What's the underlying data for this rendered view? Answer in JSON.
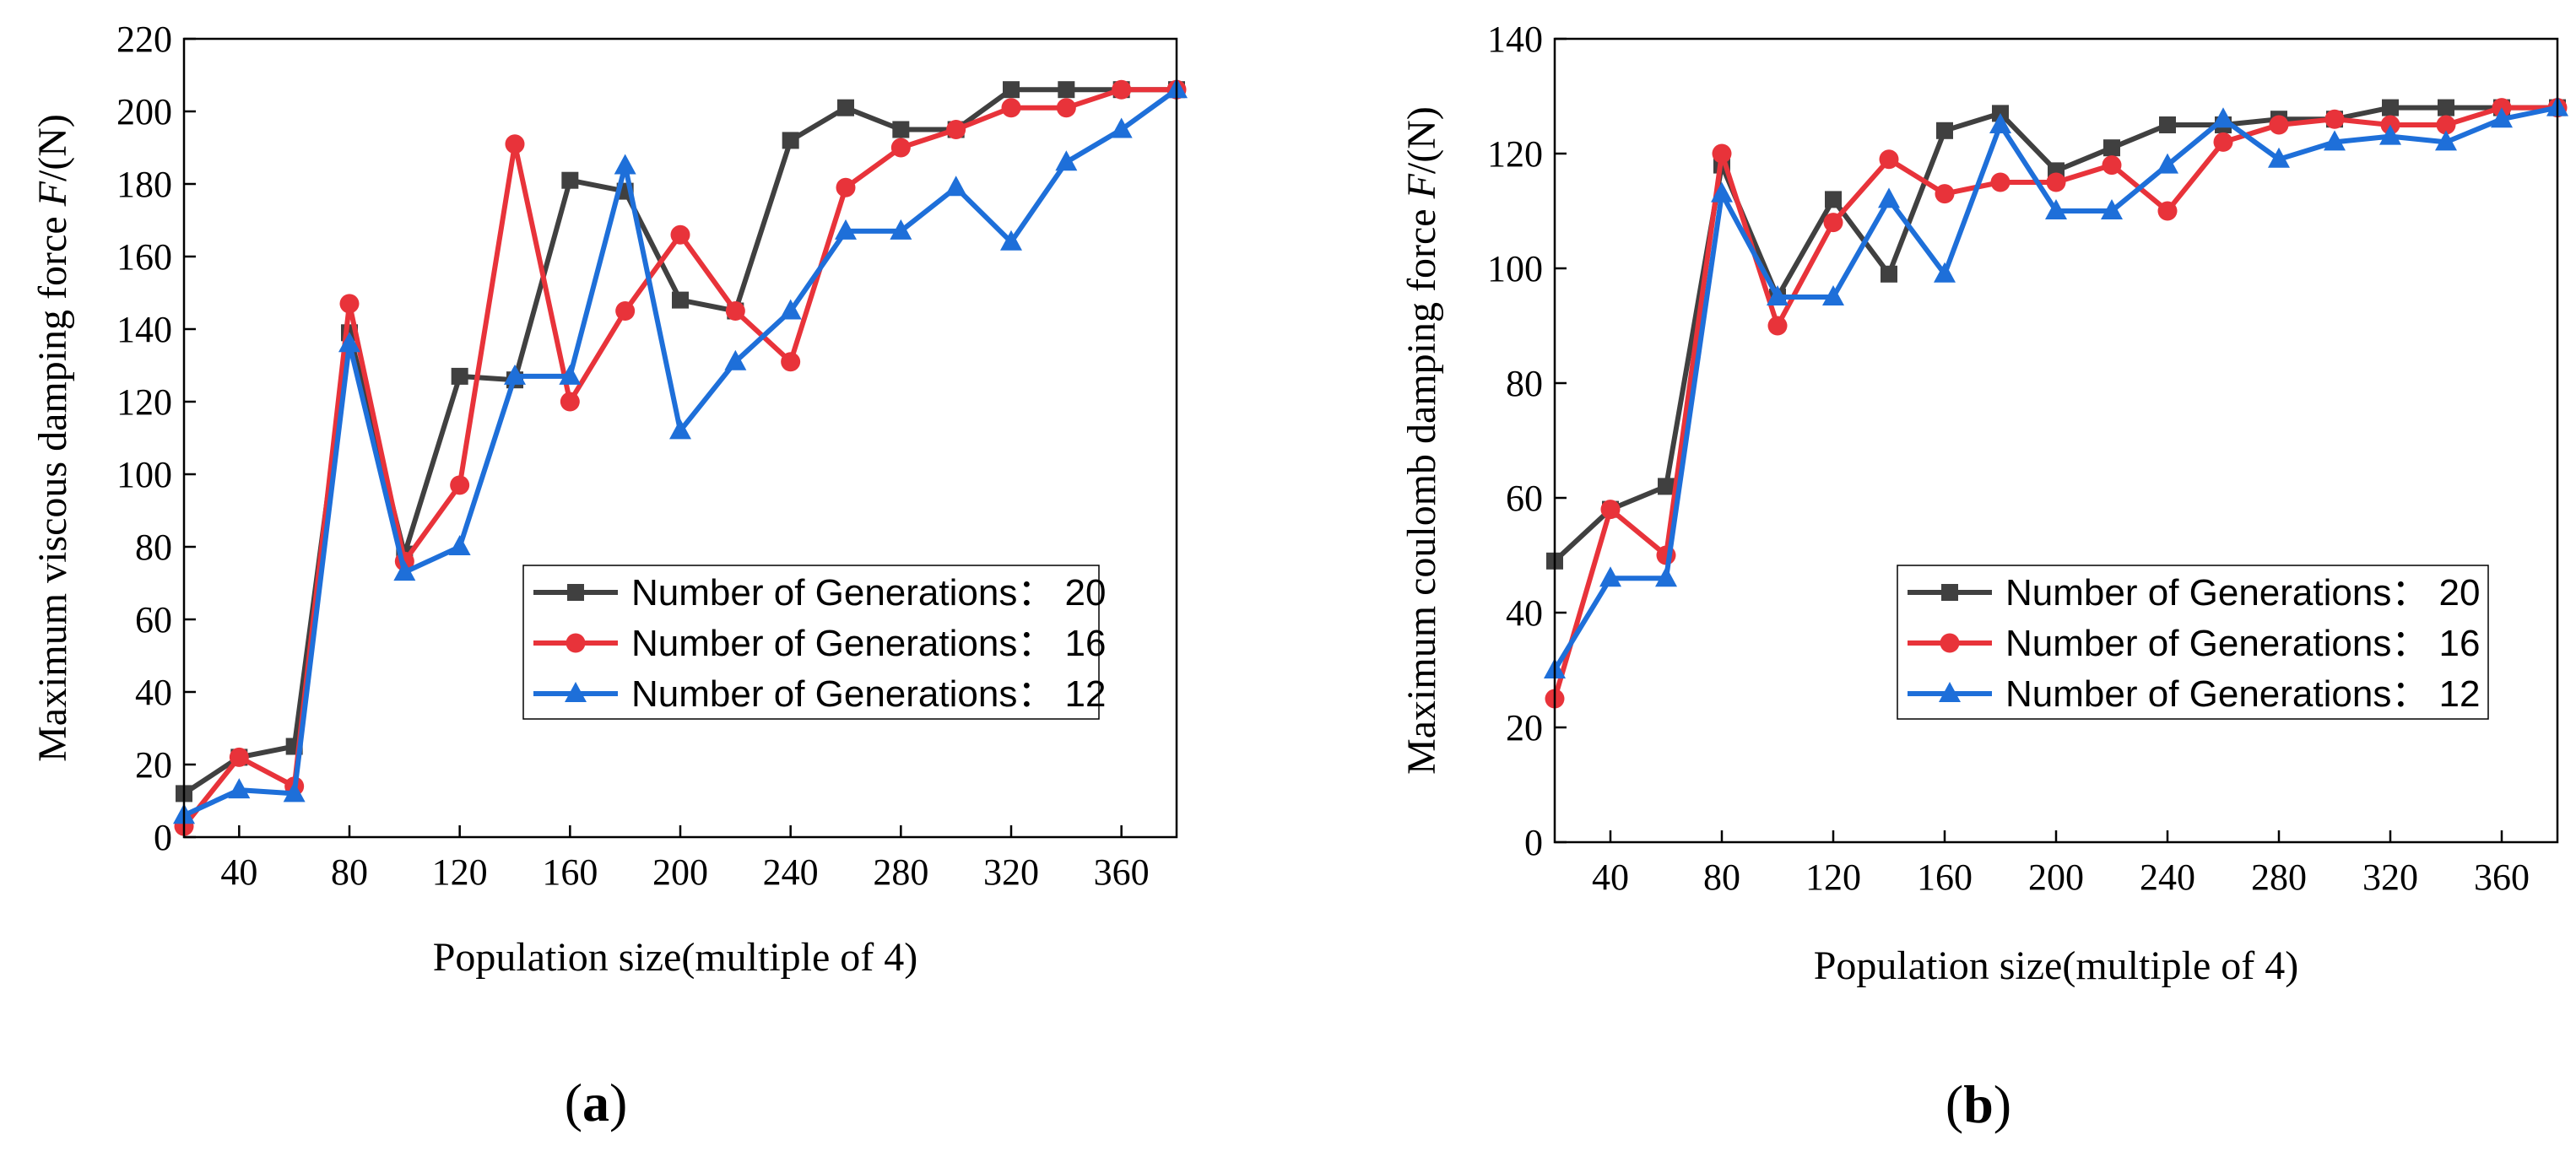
{
  "chart_data": [
    {
      "type": "line",
      "panel_label": [
        "(",
        "a",
        ")"
      ],
      "xlabel": "Population size(multiple of 4)",
      "ylabel_prefix": "Maximum viscous damping force ",
      "ylabel_symbol": "F",
      "ylabel_suffix": "/(N)",
      "xlim": [
        20,
        380
      ],
      "ylim": [
        0,
        220
      ],
      "xticks": [
        40,
        80,
        120,
        160,
        200,
        240,
        280,
        320,
        360
      ],
      "yticks": [
        0,
        20,
        40,
        60,
        80,
        100,
        120,
        140,
        160,
        180,
        200,
        220
      ],
      "legend_position": "lower-right",
      "x": [
        20,
        40,
        60,
        80,
        100,
        120,
        140,
        160,
        180,
        200,
        220,
        240,
        260,
        280,
        300,
        320,
        340,
        360,
        380
      ],
      "series": [
        {
          "name": "Number of Generations： 20",
          "color": "#404040",
          "marker": "square",
          "values": [
            12,
            22,
            25,
            139,
            78,
            127,
            126,
            181,
            178,
            148,
            145,
            192,
            201,
            195,
            195,
            206,
            206,
            206,
            206
          ]
        },
        {
          "name": "Number of Generations： 16",
          "color": "#e8333a",
          "marker": "circle",
          "values": [
            3,
            22,
            14,
            147,
            76,
            97,
            191,
            120,
            145,
            166,
            145,
            131,
            179,
            190,
            195,
            201,
            201,
            206,
            206
          ]
        },
        {
          "name": "Number of Generations： 12",
          "color": "#1e6fd9",
          "marker": "triangle",
          "values": [
            6,
            13,
            12,
            136,
            73,
            80,
            127,
            127,
            185,
            112,
            131,
            145,
            167,
            167,
            179,
            164,
            186,
            195,
            206
          ]
        }
      ]
    },
    {
      "type": "line",
      "panel_label": [
        "(",
        "b",
        ")"
      ],
      "xlabel": "Population size(multiple of 4)",
      "ylabel_prefix": "Maximum coulomb damping force ",
      "ylabel_symbol": "F",
      "ylabel_suffix": "/(N)",
      "xlim": [
        20,
        380
      ],
      "ylim": [
        0,
        140
      ],
      "xticks": [
        40,
        80,
        120,
        160,
        200,
        240,
        280,
        320,
        360
      ],
      "yticks": [
        0,
        20,
        40,
        60,
        80,
        100,
        120,
        140
      ],
      "legend_position": "lower-right",
      "x": [
        20,
        40,
        60,
        80,
        100,
        120,
        140,
        160,
        180,
        200,
        220,
        240,
        260,
        280,
        300,
        320,
        340,
        360,
        380
      ],
      "series": [
        {
          "name": "Number of Generations： 20",
          "color": "#404040",
          "marker": "square",
          "values": [
            49,
            58,
            62,
            118,
            95,
            112,
            99,
            124,
            127,
            117,
            121,
            125,
            125,
            126,
            126,
            128,
            128,
            128,
            128
          ]
        },
        {
          "name": "Number of Generations： 16",
          "color": "#e8333a",
          "marker": "circle",
          "values": [
            25,
            58,
            50,
            120,
            90,
            108,
            119,
            113,
            115,
            115,
            118,
            110,
            122,
            125,
            126,
            125,
            125,
            128,
            128
          ]
        },
        {
          "name": "Number of Generations： 12",
          "color": "#1e6fd9",
          "marker": "triangle",
          "values": [
            30,
            46,
            46,
            113,
            95,
            95,
            112,
            99,
            125,
            110,
            110,
            118,
            126,
            119,
            122,
            123,
            122,
            126,
            128
          ]
        }
      ]
    }
  ]
}
